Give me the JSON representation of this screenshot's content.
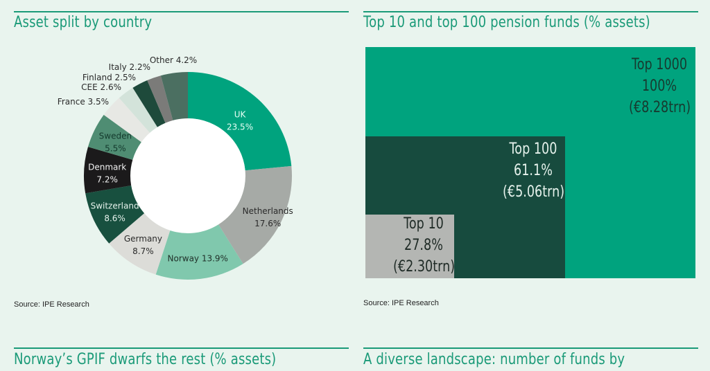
{
  "chart_data": [
    {
      "type": "pie",
      "variant": "donut",
      "title": "Asset split by country",
      "source": "Source: IPE Research",
      "slices": [
        {
          "label": "UK",
          "value": 23.5,
          "display": "23.5%",
          "color": "#00a37e",
          "text_color": "#e6fff5"
        },
        {
          "label": "Netherlands",
          "value": 17.6,
          "display": "17.6%",
          "color": "#a6aaa6",
          "text_color": "#2a2a2a"
        },
        {
          "label": "Norway",
          "value": 13.9,
          "display": "13.9%",
          "color": "#80c8ad",
          "text_color": "#1f2f28"
        },
        {
          "label": "Germany",
          "value": 8.7,
          "display": "8.7%",
          "color": "#dcdcd8",
          "text_color": "#2a2a2a"
        },
        {
          "label": "Switzerland",
          "value": 8.6,
          "display": "8.6%",
          "color": "#18503f",
          "text_color": "#e6f2ec"
        },
        {
          "label": "Denmark",
          "value": 7.2,
          "display": "7.2%",
          "color": "#1b1a1b",
          "text_color": "#f2f2f2"
        },
        {
          "label": "Sweden",
          "value": 5.5,
          "display": "5.5%",
          "color": "#4f8d73",
          "text_color": "#143a2d"
        },
        {
          "label": "France",
          "value": 3.5,
          "display": "3.5%",
          "color": "#e7e8e4",
          "text_color": "#2a2a2a"
        },
        {
          "label": "CEE",
          "value": 2.6,
          "display": "2.6%",
          "color": "#d3e3da",
          "text_color": "#2a2a2a"
        },
        {
          "label": "Finland",
          "value": 2.5,
          "display": "2.5%",
          "color": "#1e4a3b",
          "text_color": "#2a2a2a"
        },
        {
          "label": "Italy",
          "value": 2.2,
          "display": "2.2%",
          "color": "#7b7b79",
          "text_color": "#2a2a2a"
        },
        {
          "label": "Other",
          "value": 4.2,
          "display": "4.2%",
          "color": "#4b6f61",
          "text_color": "#2a2a2a"
        }
      ]
    },
    {
      "type": "treemap",
      "title": "Top 10 and top 100 pension funds (% assets)",
      "source": "Source: IPE Research",
      "items": [
        {
          "label": "Top 1000",
          "pct": "100%",
          "amount": "(€8.28trn)",
          "value": 100,
          "color": "#00a37e",
          "text_color": "#173a2f"
        },
        {
          "label": "Top 100",
          "pct": "61.1%",
          "amount": "(€5.06trn)",
          "value": 61.1,
          "color": "#174b3e",
          "text_color": "#e6f2ec"
        },
        {
          "label": "Top 10",
          "pct": "27.8%",
          "amount": "(€2.30trn)",
          "value": 27.8,
          "color": "#b4b6b3",
          "text_color": "#1e2a25"
        }
      ]
    }
  ],
  "next_sections": [
    {
      "title": "Norway’s GPIF dwarfs the rest (% assets)"
    },
    {
      "title": "A diverse landscape: number of funds by"
    }
  ]
}
